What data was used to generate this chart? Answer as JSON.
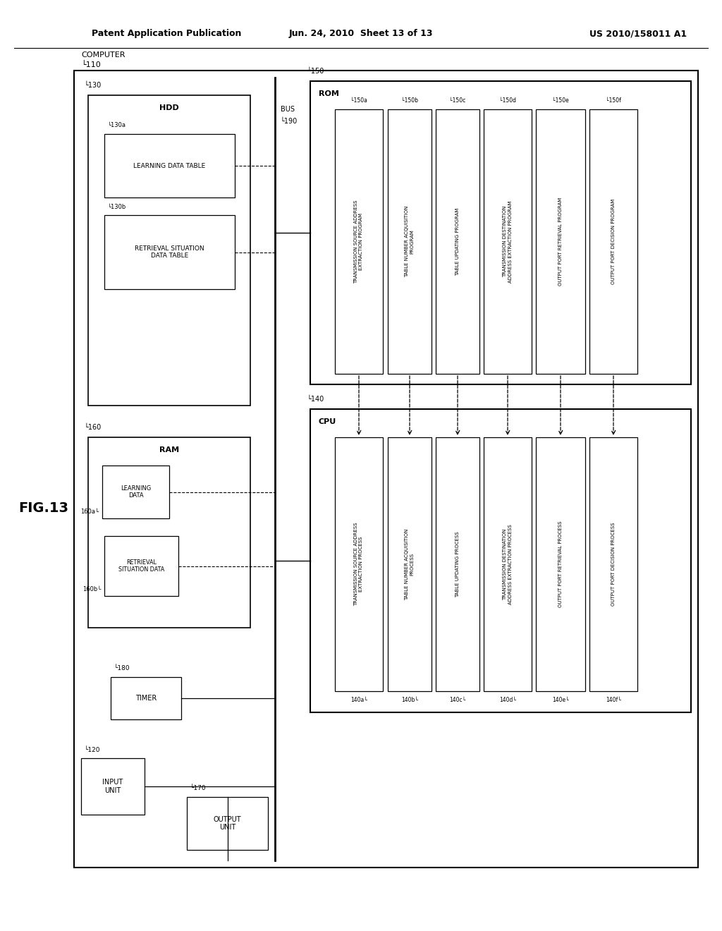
{
  "title_left": "Patent Application Publication",
  "title_center": "Jun. 24, 2010  Sheet 13 of 13",
  "title_right": "US 2010/158011 A1",
  "fig_label": "FIG.13",
  "bg_color": "#ffffff"
}
